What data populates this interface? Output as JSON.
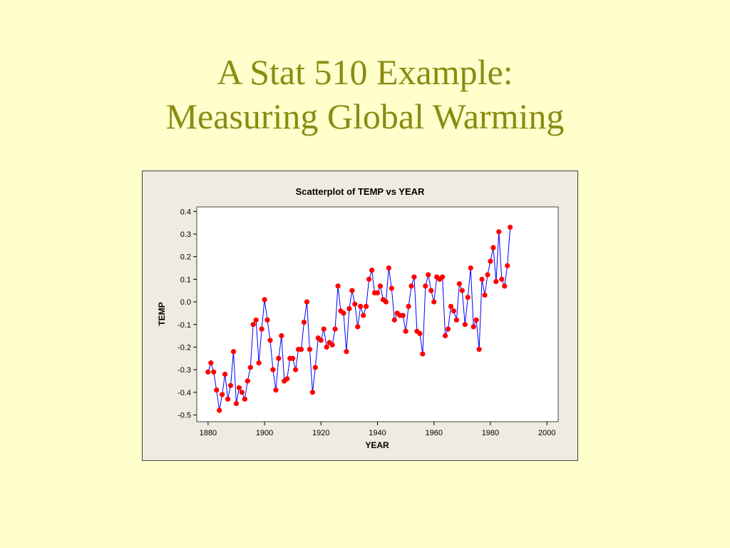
{
  "slide": {
    "title_line1": "A Stat 510 Example:",
    "title_line2": "Measuring Global Warming"
  },
  "colors": {
    "background": "#ffffcc",
    "title": "#8b8b12",
    "chart_frame_bg": "#eeebe0",
    "plot_bg": "#ffffff",
    "point": "#ff0000",
    "line": "#0000ff"
  },
  "chart_data": {
    "type": "scatter",
    "title": "Scatterplot of TEMP vs YEAR",
    "xlabel": "YEAR",
    "ylabel": "TEMP",
    "xlim": [
      1876,
      2004
    ],
    "ylim": [
      -0.53,
      0.42
    ],
    "xticks": [
      1880,
      1900,
      1920,
      1940,
      1960,
      1980,
      2000
    ],
    "yticks": [
      0.4,
      0.3,
      0.2,
      0.1,
      0.0,
      -0.1,
      -0.2,
      -0.3,
      -0.4,
      -0.5
    ],
    "ytick_labels": [
      "0.4",
      "0.3",
      "0.2",
      "0.1",
      "0.0",
      "-0.1",
      "-0.2",
      "-0.3",
      "-0.4",
      "-0.5"
    ],
    "connected": true,
    "grid": false,
    "x": [
      1880,
      1881,
      1882,
      1883,
      1884,
      1885,
      1886,
      1887,
      1888,
      1889,
      1890,
      1891,
      1892,
      1893,
      1894,
      1895,
      1896,
      1897,
      1898,
      1899,
      1900,
      1901,
      1902,
      1903,
      1904,
      1905,
      1906,
      1907,
      1908,
      1909,
      1910,
      1911,
      1912,
      1913,
      1914,
      1915,
      1916,
      1917,
      1918,
      1919,
      1920,
      1921,
      1922,
      1923,
      1924,
      1925,
      1926,
      1927,
      1928,
      1929,
      1930,
      1931,
      1932,
      1933,
      1934,
      1935,
      1936,
      1937,
      1938,
      1939,
      1940,
      1941,
      1942,
      1943,
      1944,
      1945,
      1946,
      1947,
      1948,
      1949,
      1950,
      1951,
      1952,
      1953,
      1954,
      1955,
      1956,
      1957,
      1958,
      1959,
      1960,
      1961,
      1962,
      1963,
      1964,
      1965,
      1966,
      1967,
      1968,
      1969,
      1970,
      1971,
      1972,
      1973,
      1974,
      1975,
      1976,
      1977,
      1978,
      1979,
      1980,
      1981,
      1982,
      1983,
      1984,
      1985,
      1986,
      1987
    ],
    "y": [
      -0.31,
      -0.27,
      -0.31,
      -0.39,
      -0.48,
      -0.41,
      -0.32,
      -0.43,
      -0.37,
      -0.22,
      -0.45,
      -0.38,
      -0.4,
      -0.43,
      -0.35,
      -0.29,
      -0.1,
      -0.08,
      -0.27,
      -0.12,
      0.01,
      -0.08,
      -0.17,
      -0.3,
      -0.39,
      -0.25,
      -0.15,
      -0.35,
      -0.34,
      -0.25,
      -0.25,
      -0.3,
      -0.21,
      -0.21,
      -0.09,
      0.0,
      -0.21,
      -0.4,
      -0.29,
      -0.16,
      -0.17,
      -0.12,
      -0.2,
      -0.18,
      -0.19,
      -0.12,
      0.07,
      -0.04,
      -0.05,
      -0.22,
      -0.03,
      0.05,
      -0.01,
      -0.11,
      -0.02,
      -0.06,
      -0.02,
      0.1,
      0.14,
      0.04,
      0.04,
      0.07,
      0.01,
      0.0,
      0.15,
      0.06,
      -0.08,
      -0.05,
      -0.06,
      -0.06,
      -0.13,
      -0.02,
      0.07,
      0.11,
      -0.13,
      -0.14,
      -0.23,
      0.07,
      0.12,
      0.05,
      0.0,
      0.11,
      0.1,
      0.11,
      -0.15,
      -0.12,
      -0.02,
      -0.04,
      -0.08,
      0.08,
      0.05,
      -0.1,
      0.02,
      0.15,
      -0.11,
      -0.08,
      -0.21,
      0.1,
      0.03,
      0.12,
      0.18,
      0.24,
      0.09,
      0.31,
      0.1,
      0.07,
      0.16,
      0.33
    ]
  }
}
